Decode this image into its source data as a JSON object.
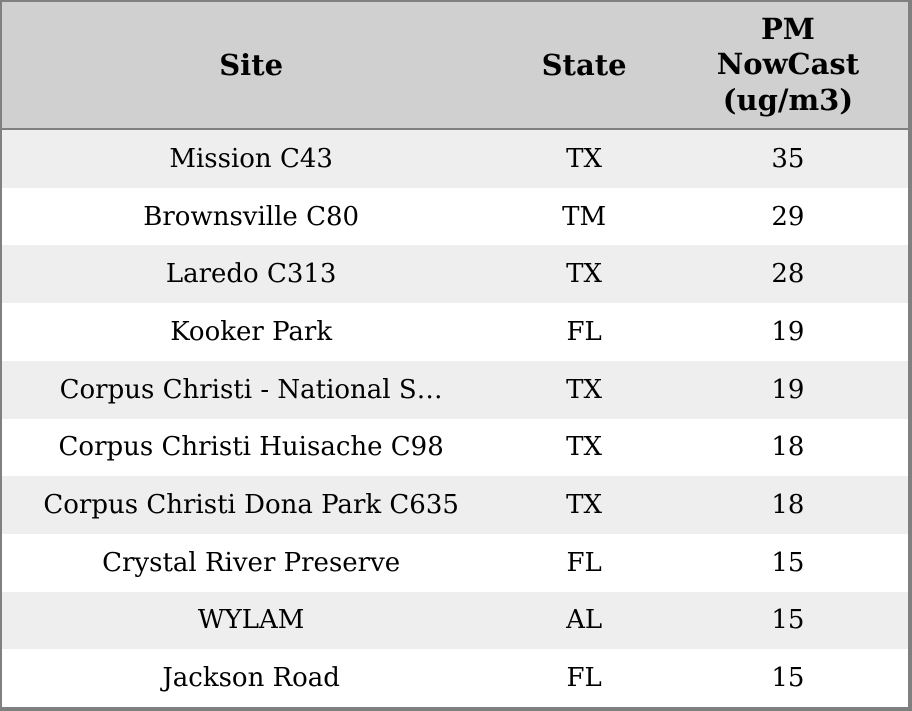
{
  "chart_data": {
    "type": "table",
    "columns": [
      {
        "key": "site",
        "label": "Site"
      },
      {
        "key": "state",
        "label": "State"
      },
      {
        "key": "pm_nowcast",
        "label": "PM NowCast (ug/m3)"
      }
    ],
    "rows": [
      {
        "site": "Mission C43",
        "state": "TX",
        "pm_nowcast": 35
      },
      {
        "site": "Brownsville C80",
        "state": "TM",
        "pm_nowcast": 29
      },
      {
        "site": "Laredo C313",
        "state": "TX",
        "pm_nowcast": 28
      },
      {
        "site": "Kooker Park",
        "state": "FL",
        "pm_nowcast": 19
      },
      {
        "site": "Corpus Christi - National S…",
        "state": "TX",
        "pm_nowcast": 19
      },
      {
        "site": "Corpus Christi Huisache C98",
        "state": "TX",
        "pm_nowcast": 18
      },
      {
        "site": "Corpus Christi Dona Park C635",
        "state": "TX",
        "pm_nowcast": 18
      },
      {
        "site": "Crystal River Preserve",
        "state": "FL",
        "pm_nowcast": 15
      },
      {
        "site": "WYLAM",
        "state": "AL",
        "pm_nowcast": 15
      },
      {
        "site": "Jackson Road",
        "state": "FL",
        "pm_nowcast": 15
      }
    ],
    "layout": {
      "striped_rows": true,
      "first_row_striped": true,
      "text_align": "center"
    }
  },
  "colors": {
    "header_bg": "#d0d0d0",
    "row_stripe_bg": "#eeeeee",
    "row_bg": "#ffffff",
    "border": "#808080",
    "text": "#000000"
  }
}
